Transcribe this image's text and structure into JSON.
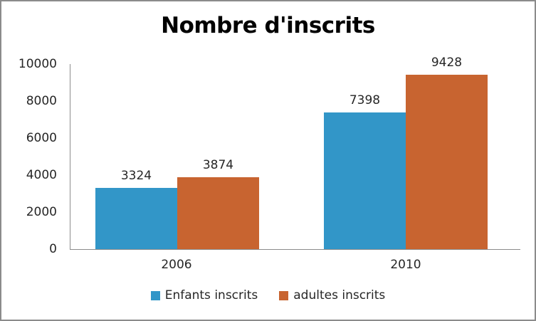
{
  "chart_data": {
    "type": "bar",
    "title": "Nombre d'inscrits",
    "categories": [
      "2006",
      "2010"
    ],
    "series": [
      {
        "name": "Enfants inscrits",
        "color": "#3296C8",
        "values": [
          3324,
          7398
        ]
      },
      {
        "name": "adultes inscrits",
        "color": "#C86430",
        "values": [
          3874,
          9428
        ]
      }
    ],
    "xlabel": "",
    "ylabel": "",
    "ylim": [
      0,
      10000
    ],
    "ytick_interval": 2000,
    "yticks": [
      "0",
      "2000",
      "4000",
      "6000",
      "8000",
      "10000"
    ],
    "grid": "off",
    "data_labels": true,
    "legend_position": "bottom"
  },
  "colors": {
    "frame_border": "#8B8B8B",
    "axis_line": "#8C8C8C",
    "tick_text": "#262626",
    "title_text": "#000000",
    "background": "#FFFFFF"
  }
}
